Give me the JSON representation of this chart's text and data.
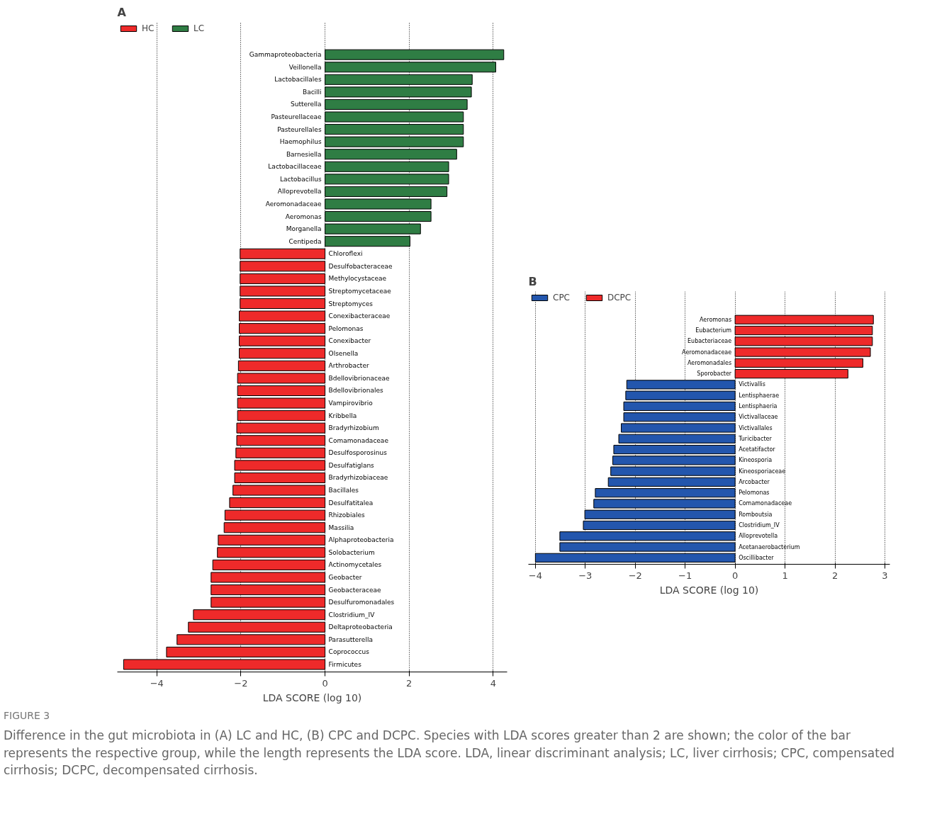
{
  "chart_data": [
    {
      "type": "bar",
      "orientation": "horizontal",
      "title": "A",
      "xlabel": "LDA SCORE (log 10)",
      "categories": [
        "Gammaproteobacteria",
        "Veillonella",
        "Lactobacillales",
        "Bacilli",
        "Sutterella",
        "Pasteurellaceae",
        "Pasteurellales",
        "Haemophilus",
        "Barnesiella",
        "Lactobacillaceae",
        "Lactobacillus",
        "Alloprevotella",
        "Aeromonadaceae",
        "Aeromonas",
        "Morganella",
        "Centipeda",
        "Chloroflexi",
        "Desulfobacteraceae",
        "Methylocystaceae",
        "Streptomycetaceae",
        "Streptomyces",
        "Conexibacteraceae",
        "Pelomonas",
        "Conexibacter",
        "Olsenella",
        "Arthrobacter",
        "Bdellovibrionaceae",
        "Bdellovibrionales",
        "Vampirovibrio",
        "Kribbella",
        "Bradyrhizobium",
        "Comamonadaceae",
        "Desulfosporosinus",
        "Desulfatiglans",
        "Bradyrhizobiaceae",
        "Bacillales",
        "Desulfatitalea",
        "Rhizobiales",
        "Massilia",
        "Alphaproteobacteria",
        "Solobacterium",
        "Actinomycetales",
        "Geobacter",
        "Geobacteraceae",
        "Desulfuromonadales",
        "Clostridium_IV",
        "Deltaproteobacteria",
        "Parasutterella",
        "Coprococcus",
        "Firmicutes"
      ],
      "series": [
        {
          "name": "HC",
          "color": "#ee2a2a",
          "values": [
            null,
            null,
            null,
            null,
            null,
            null,
            null,
            null,
            null,
            null,
            null,
            null,
            null,
            null,
            null,
            null,
            -2.02,
            -2.02,
            -2.02,
            -2.02,
            -2.02,
            -2.04,
            -2.04,
            -2.04,
            -2.04,
            -2.06,
            -2.08,
            -2.08,
            -2.08,
            -2.08,
            -2.1,
            -2.1,
            -2.12,
            -2.15,
            -2.15,
            -2.19,
            -2.27,
            -2.38,
            -2.4,
            -2.54,
            -2.56,
            -2.67,
            -2.71,
            -2.71,
            -2.71,
            -3.13,
            -3.25,
            -3.52,
            -3.77,
            -4.79
          ]
        },
        {
          "name": "LC",
          "color": "#2f7d44",
          "values": [
            4.25,
            4.06,
            3.5,
            3.48,
            3.38,
            3.29,
            3.29,
            3.29,
            3.13,
            2.94,
            2.94,
            2.9,
            2.52,
            2.52,
            2.27,
            2.02,
            null,
            null,
            null,
            null,
            null,
            null,
            null,
            null,
            null,
            null,
            null,
            null,
            null,
            null,
            null,
            null,
            null,
            null,
            null,
            null,
            null,
            null,
            null,
            null,
            null,
            null,
            null,
            null,
            null,
            null,
            null,
            null,
            null,
            null
          ]
        }
      ],
      "xlim": [
        -4.94,
        4.33
      ],
      "xticks": [
        {
          "value": -4,
          "label": "−4"
        },
        {
          "value": -2,
          "label": "−2"
        },
        0,
        2,
        4
      ],
      "grid": "x",
      "legend": "top left",
      "tick_labels": "x",
      "annotations": [
        "FIGURE 3",
        "Difference in the gut microbiota in (A) LC and HC, (B) CPC and DCPC. Species with LDA scores greater than 2 are shown; the color of the bar represents the respective group, while the length represents the LDA score. LDA, linear discriminant analysis; LC, liver cirrhosis; CPC, compensated cirrhosis; DCPC, decompensated cirrhosis."
      ]
    },
    {
      "type": "bar",
      "orientation": "horizontal",
      "title": "B",
      "xlabel": "LDA SCORE (log 10)",
      "categories": [
        "Aeromonas",
        "Eubacterium",
        "Eubacteriaceae",
        "Aeromonadaceae",
        "Aeromonadales",
        "Sporobacter",
        "Victivallis",
        "Lentisphaerae",
        "Lentisphaeria",
        "Victivallaceae",
        "Victivallales",
        "Turicibacter",
        "Acetatifactor",
        "Kineosporia",
        "Kineosporiaceae",
        "Arcobacter",
        "Pelomonas",
        "Comamonadaceae",
        "Romboutsia",
        "Clostridium_IV",
        "Alloprevotella",
        "Acetanaerobacterium",
        "Oscillibacter"
      ],
      "series": [
        {
          "name": "CPC",
          "color": "#2356ad",
          "values": [
            null,
            null,
            null,
            null,
            null,
            null,
            -2.17,
            -2.19,
            -2.23,
            -2.23,
            -2.28,
            -2.33,
            -2.43,
            -2.45,
            -2.49,
            -2.54,
            -2.8,
            -2.83,
            -3.01,
            -3.04,
            -3.51,
            -3.51,
            -4.0
          ]
        },
        {
          "name": "DCPC",
          "color": "#ee2a2a",
          "values": [
            2.77,
            2.75,
            2.75,
            2.71,
            2.56,
            2.26,
            null,
            null,
            null,
            null,
            null,
            null,
            null,
            null,
            null,
            null,
            null,
            null,
            null,
            null,
            null,
            null,
            null
          ]
        }
      ],
      "xlim": [
        -4.14,
        3.1
      ],
      "xticks": [
        {
          "value": -4,
          "label": "−4"
        },
        {
          "value": -3,
          "label": "−3"
        },
        {
          "value": -2,
          "label": "−2"
        },
        {
          "value": -1,
          "label": "−1"
        },
        0,
        1,
        2,
        3
      ],
      "grid": "x",
      "legend": "top left",
      "tick_labels": "x"
    }
  ]
}
